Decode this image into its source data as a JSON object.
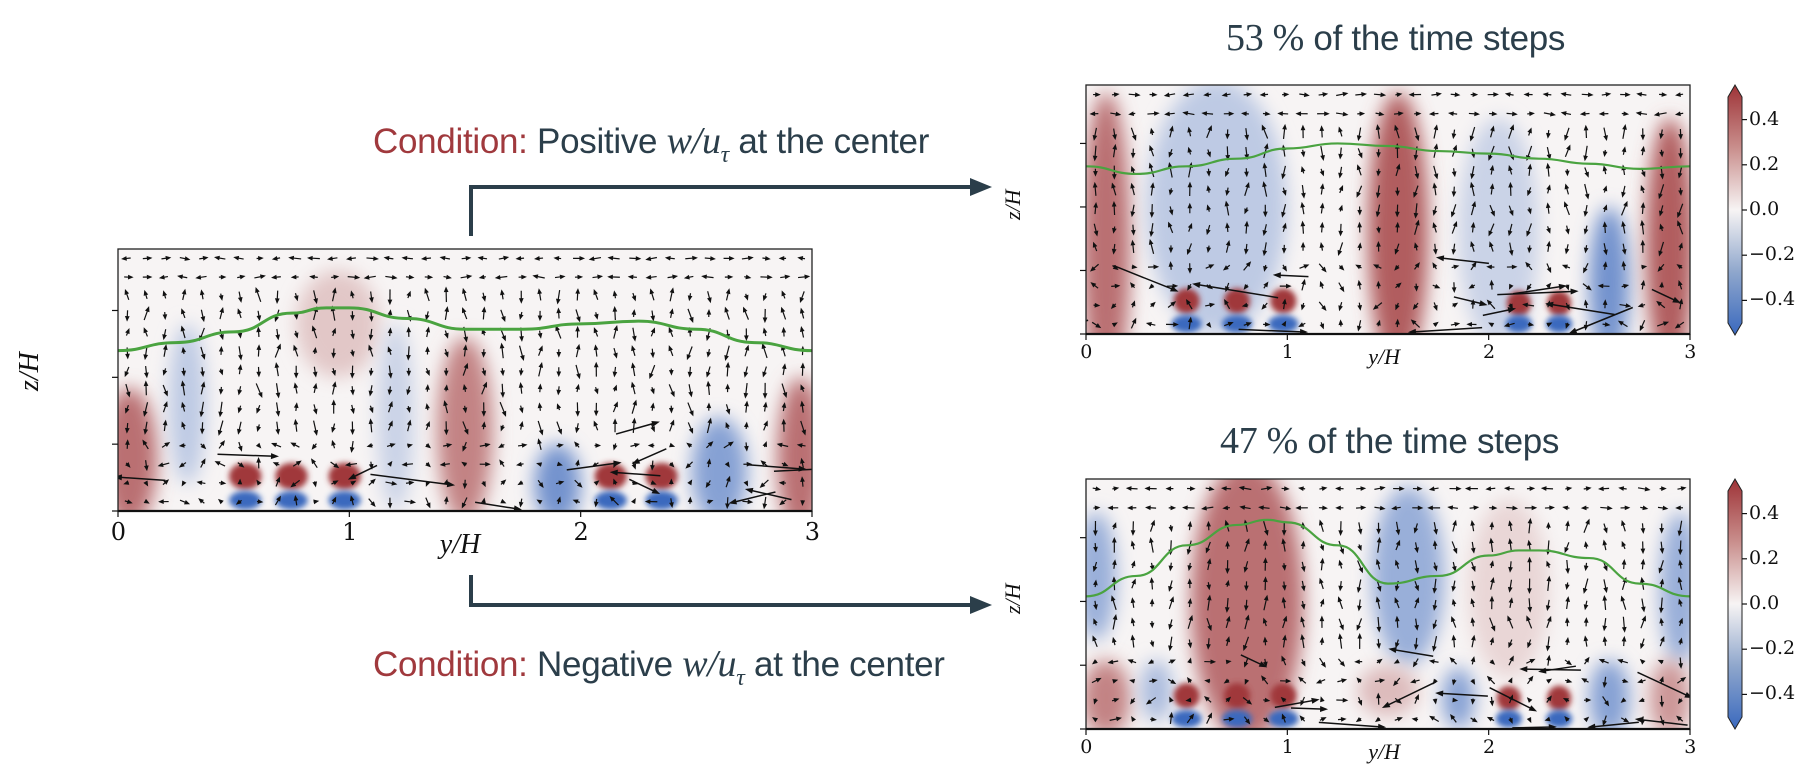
{
  "figure": {
    "colors": {
      "text_dark": "#2b3e4a",
      "condition_red": "#a0393d",
      "positive": "#a3383a",
      "negative": "#3a6bc0",
      "isoline": "#4aa340",
      "arrow": "#2b3e4a"
    },
    "captions": {
      "positive": {
        "prefix": "Condition:",
        "pre": "Positive",
        "math": "w/u",
        "sub": "τ",
        "post": "at the center"
      },
      "negative": {
        "prefix": "Condition:",
        "pre": "Negative",
        "math": "w/u",
        "sub": "τ",
        "post": "at the center"
      }
    },
    "titles": {
      "top": {
        "num": "53 %",
        "text": "of the time steps"
      },
      "bottom": {
        "num": "47 %",
        "text": "of the time steps"
      }
    }
  },
  "chart_data": [
    {
      "type": "heatmap",
      "id": "mean",
      "title": "",
      "xlabel": "y/H",
      "ylabel": "z/H",
      "xlim": [
        0,
        3
      ],
      "ylim": [
        0,
        0.98
      ],
      "xticks": [
        "0",
        "1",
        "2",
        "3"
      ],
      "yticks": [
        "0",
        "0.25",
        "0.5",
        "0.75"
      ],
      "colorbar": false,
      "overlay": [
        "quiver (v,w) vectors",
        "green isoline"
      ],
      "isoline": {
        "y": [
          0,
          0.25,
          0.5,
          0.75,
          0.9,
          1.0,
          1.25,
          1.5,
          1.75,
          2.0,
          2.25,
          2.5,
          2.75,
          3.0
        ],
        "z": [
          0.6,
          0.63,
          0.67,
          0.74,
          0.76,
          0.76,
          0.72,
          0.68,
          0.68,
          0.7,
          0.71,
          0.68,
          0.63,
          0.6
        ]
      },
      "blobs": [
        {
          "y": 0.05,
          "z": 0.2,
          "ry": 0.12,
          "rz": 0.26,
          "v": 0.35
        },
        {
          "y": 0.3,
          "z": 0.4,
          "ry": 0.08,
          "rz": 0.3,
          "v": -0.15
        },
        {
          "y": 0.55,
          "z": 0.13,
          "ry": 0.07,
          "rz": 0.05,
          "v": 0.5
        },
        {
          "y": 0.75,
          "z": 0.13,
          "ry": 0.07,
          "rz": 0.05,
          "v": 0.5
        },
        {
          "y": 0.98,
          "z": 0.13,
          "ry": 0.07,
          "rz": 0.05,
          "v": 0.5
        },
        {
          "y": 0.55,
          "z": 0.04,
          "ry": 0.07,
          "rz": 0.035,
          "v": -0.55
        },
        {
          "y": 0.75,
          "z": 0.04,
          "ry": 0.07,
          "rz": 0.035,
          "v": -0.55
        },
        {
          "y": 0.98,
          "z": 0.04,
          "ry": 0.07,
          "rz": 0.035,
          "v": -0.55
        },
        {
          "y": 0.95,
          "z": 0.7,
          "ry": 0.18,
          "rz": 0.2,
          "v": 0.12
        },
        {
          "y": 1.2,
          "z": 0.35,
          "ry": 0.08,
          "rz": 0.35,
          "v": -0.12
        },
        {
          "y": 1.5,
          "z": 0.3,
          "ry": 0.12,
          "rz": 0.35,
          "v": 0.3
        },
        {
          "y": 1.9,
          "z": 0.1,
          "ry": 0.1,
          "rz": 0.15,
          "v": -0.35
        },
        {
          "y": 2.13,
          "z": 0.13,
          "ry": 0.07,
          "rz": 0.05,
          "v": 0.5
        },
        {
          "y": 2.35,
          "z": 0.13,
          "ry": 0.07,
          "rz": 0.05,
          "v": 0.5
        },
        {
          "y": 2.13,
          "z": 0.04,
          "ry": 0.07,
          "rz": 0.035,
          "v": -0.55
        },
        {
          "y": 2.35,
          "z": 0.04,
          "ry": 0.07,
          "rz": 0.035,
          "v": -0.55
        },
        {
          "y": 2.6,
          "z": 0.15,
          "ry": 0.12,
          "rz": 0.2,
          "v": -0.3
        },
        {
          "y": 2.95,
          "z": 0.2,
          "ry": 0.1,
          "rz": 0.3,
          "v": 0.35
        }
      ]
    },
    {
      "type": "heatmap",
      "id": "positive",
      "title": "53 % of the time steps",
      "xlabel": "y/H",
      "ylabel": "z/H",
      "xlim": [
        0,
        3
      ],
      "ylim": [
        0,
        0.98
      ],
      "xticks": [
        "0",
        "1",
        "2",
        "3"
      ],
      "yticks": [
        "0",
        "0.25",
        "0.5",
        "0.75"
      ],
      "colorbar": {
        "range": [
          -0.5,
          0.5
        ],
        "ticks": [
          "0.4",
          "0.2",
          "0.0",
          "−0.2",
          "−0.4"
        ],
        "extend": "both",
        "cmap": "RdBu_r"
      },
      "overlay": [
        "quiver (v,w) vectors",
        "green isoline"
      ],
      "isoline": {
        "y": [
          0,
          0.25,
          0.5,
          0.75,
          1.0,
          1.25,
          1.5,
          1.75,
          2.0,
          2.25,
          2.5,
          2.75,
          3.0
        ],
        "z": [
          0.66,
          0.63,
          0.66,
          0.69,
          0.73,
          0.75,
          0.74,
          0.72,
          0.71,
          0.69,
          0.67,
          0.65,
          0.66
        ]
      },
      "blobs": [
        {
          "y": 0.1,
          "z": 0.35,
          "ry": 0.12,
          "rz": 0.6,
          "v": 0.35
        },
        {
          "y": 0.65,
          "z": 0.5,
          "ry": 0.35,
          "rz": 0.5,
          "v": -0.15
        },
        {
          "y": 0.5,
          "z": 0.13,
          "ry": 0.065,
          "rz": 0.05,
          "v": 0.55
        },
        {
          "y": 0.75,
          "z": 0.13,
          "ry": 0.065,
          "rz": 0.05,
          "v": 0.55
        },
        {
          "y": 0.98,
          "z": 0.13,
          "ry": 0.065,
          "rz": 0.05,
          "v": 0.55
        },
        {
          "y": 0.5,
          "z": 0.04,
          "ry": 0.075,
          "rz": 0.035,
          "v": -0.6
        },
        {
          "y": 0.75,
          "z": 0.04,
          "ry": 0.075,
          "rz": 0.035,
          "v": -0.6
        },
        {
          "y": 0.98,
          "z": 0.04,
          "ry": 0.075,
          "rz": 0.035,
          "v": -0.6
        },
        {
          "y": 1.55,
          "z": 0.4,
          "ry": 0.15,
          "rz": 0.55,
          "v": 0.4
        },
        {
          "y": 2.05,
          "z": 0.4,
          "ry": 0.2,
          "rz": 0.45,
          "v": -0.12
        },
        {
          "y": 2.15,
          "z": 0.12,
          "ry": 0.06,
          "rz": 0.05,
          "v": 0.5
        },
        {
          "y": 2.35,
          "z": 0.12,
          "ry": 0.06,
          "rz": 0.05,
          "v": 0.5
        },
        {
          "y": 2.15,
          "z": 0.04,
          "ry": 0.065,
          "rz": 0.035,
          "v": -0.6
        },
        {
          "y": 2.35,
          "z": 0.04,
          "ry": 0.065,
          "rz": 0.035,
          "v": -0.6
        },
        {
          "y": 2.6,
          "z": 0.2,
          "ry": 0.1,
          "rz": 0.3,
          "v": -0.35
        },
        {
          "y": 2.9,
          "z": 0.35,
          "ry": 0.12,
          "rz": 0.5,
          "v": 0.4
        }
      ]
    },
    {
      "type": "heatmap",
      "id": "negative",
      "title": "47 % of the time steps",
      "xlabel": "y/H",
      "ylabel": "z/H",
      "xlim": [
        0,
        3
      ],
      "ylim": [
        0,
        0.98
      ],
      "xticks": [
        "0",
        "1",
        "2",
        "3"
      ],
      "yticks": [
        "0",
        "0.25",
        "0.5",
        "0.75"
      ],
      "colorbar": {
        "range": [
          -0.5,
          0.5
        ],
        "ticks": [
          "0.4",
          "0.2",
          "0.0",
          "−0.2",
          "−0.4"
        ],
        "extend": "both",
        "cmap": "RdBu_r"
      },
      "overlay": [
        "quiver (v,w) vectors",
        "green isoline"
      ],
      "isoline": {
        "y": [
          0,
          0.25,
          0.5,
          0.75,
          0.9,
          1.0,
          1.25,
          1.5,
          1.75,
          2.0,
          2.15,
          2.25,
          2.5,
          2.75,
          3.0
        ],
        "z": [
          0.52,
          0.6,
          0.72,
          0.8,
          0.82,
          0.81,
          0.72,
          0.57,
          0.6,
          0.68,
          0.7,
          0.7,
          0.67,
          0.57,
          0.52
        ]
      },
      "blobs": [
        {
          "y": 0.05,
          "z": 0.6,
          "ry": 0.1,
          "rz": 0.25,
          "v": -0.25
        },
        {
          "y": 0.1,
          "z": 0.12,
          "ry": 0.12,
          "rz": 0.15,
          "v": 0.3
        },
        {
          "y": 0.35,
          "z": 0.15,
          "ry": 0.08,
          "rz": 0.12,
          "v": -0.2
        },
        {
          "y": 0.8,
          "z": 0.5,
          "ry": 0.28,
          "rz": 0.55,
          "v": 0.35
        },
        {
          "y": 0.5,
          "z": 0.13,
          "ry": 0.065,
          "rz": 0.05,
          "v": 0.55
        },
        {
          "y": 0.75,
          "z": 0.13,
          "ry": 0.065,
          "rz": 0.05,
          "v": 0.55
        },
        {
          "y": 0.98,
          "z": 0.13,
          "ry": 0.065,
          "rz": 0.05,
          "v": 0.55
        },
        {
          "y": 0.5,
          "z": 0.04,
          "ry": 0.075,
          "rz": 0.035,
          "v": -0.6
        },
        {
          "y": 0.75,
          "z": 0.04,
          "ry": 0.075,
          "rz": 0.035,
          "v": -0.6
        },
        {
          "y": 0.98,
          "z": 0.04,
          "ry": 0.075,
          "rz": 0.035,
          "v": -0.6
        },
        {
          "y": 1.6,
          "z": 0.6,
          "ry": 0.18,
          "rz": 0.35,
          "v": -0.25
        },
        {
          "y": 1.5,
          "z": 0.15,
          "ry": 0.15,
          "rz": 0.1,
          "v": 0.15
        },
        {
          "y": 1.85,
          "z": 0.12,
          "ry": 0.08,
          "rz": 0.12,
          "v": -0.3
        },
        {
          "y": 2.1,
          "z": 0.12,
          "ry": 0.06,
          "rz": 0.05,
          "v": 0.5
        },
        {
          "y": 2.35,
          "z": 0.12,
          "ry": 0.06,
          "rz": 0.05,
          "v": 0.5
        },
        {
          "y": 2.1,
          "z": 0.04,
          "ry": 0.065,
          "rz": 0.035,
          "v": -0.6
        },
        {
          "y": 2.35,
          "z": 0.04,
          "ry": 0.065,
          "rz": 0.035,
          "v": -0.6
        },
        {
          "y": 2.6,
          "z": 0.12,
          "ry": 0.1,
          "rz": 0.15,
          "v": -0.3
        },
        {
          "y": 2.95,
          "z": 0.55,
          "ry": 0.1,
          "rz": 0.3,
          "v": -0.25
        },
        {
          "y": 2.9,
          "z": 0.12,
          "ry": 0.1,
          "rz": 0.15,
          "v": 0.25
        },
        {
          "y": 2.1,
          "z": 0.55,
          "ry": 0.2,
          "rz": 0.35,
          "v": 0.08
        }
      ]
    }
  ]
}
